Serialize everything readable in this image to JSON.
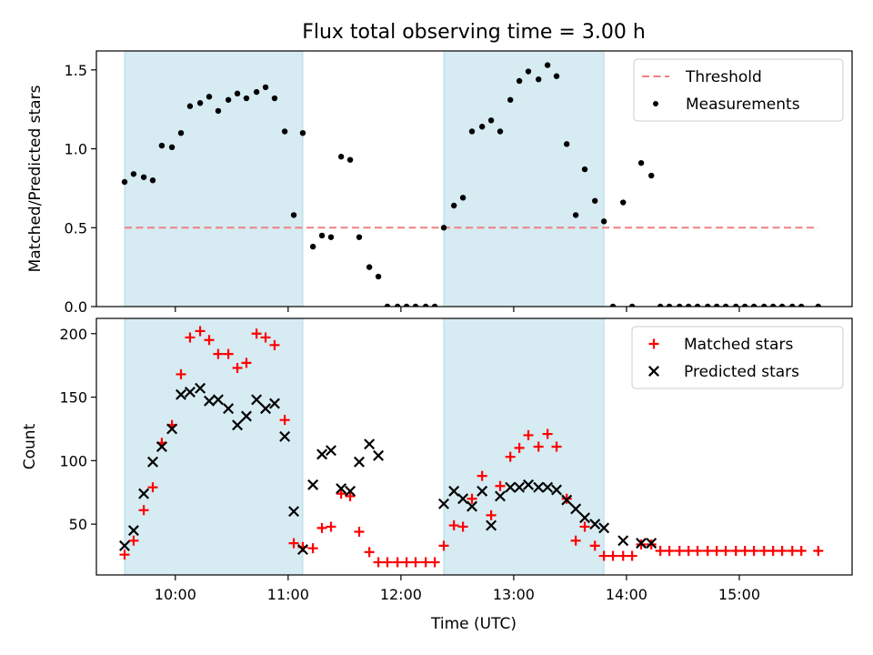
{
  "chart_data": {
    "title": "Flux total observing time = 3.00 h",
    "xlabel": "Time (UTC)",
    "x_unit": "hours (UTC)",
    "xlim": [
      9.3,
      16.0
    ],
    "xticks": [
      {
        "value": 10,
        "label": "10:00"
      },
      {
        "value": 11,
        "label": "11:00"
      },
      {
        "value": 12,
        "label": "12:00"
      },
      {
        "value": 13,
        "label": "13:00"
      },
      {
        "value": 14,
        "label": "14:00"
      },
      {
        "value": 15,
        "label": "15:00"
      }
    ],
    "shaded_intervals": [
      [
        9.55,
        11.13
      ],
      [
        12.38,
        13.8
      ]
    ],
    "shade_color": "#add8e6",
    "panels": [
      {
        "type": "scatter",
        "ylabel": "Matched/Predicted stars",
        "ylim": [
          0,
          1.62
        ],
        "yticks": [
          0.0,
          0.5,
          1.0,
          1.5
        ],
        "ytick_labels": [
          "0.0",
          "0.5",
          "1.0",
          "1.5"
        ],
        "threshold": {
          "name": "Threshold",
          "value": 0.5,
          "x_range": [
            9.55,
            15.7
          ],
          "color": "#f08080"
        },
        "series": [
          {
            "name": "Measurements",
            "marker": "dot",
            "color": "#000000",
            "points": [
              [
                9.55,
                0.79
              ],
              [
                9.63,
                0.84
              ],
              [
                9.72,
                0.82
              ],
              [
                9.8,
                0.8
              ],
              [
                9.88,
                1.02
              ],
              [
                9.97,
                1.01
              ],
              [
                10.05,
                1.1
              ],
              [
                10.13,
                1.27
              ],
              [
                10.22,
                1.29
              ],
              [
                10.3,
                1.33
              ],
              [
                10.38,
                1.24
              ],
              [
                10.47,
                1.31
              ],
              [
                10.55,
                1.35
              ],
              [
                10.63,
                1.32
              ],
              [
                10.72,
                1.36
              ],
              [
                10.8,
                1.39
              ],
              [
                10.88,
                1.32
              ],
              [
                10.97,
                1.11
              ],
              [
                11.05,
                0.58
              ],
              [
                11.13,
                1.1
              ],
              [
                11.22,
                0.38
              ],
              [
                11.3,
                0.45
              ],
              [
                11.38,
                0.44
              ],
              [
                11.47,
                0.95
              ],
              [
                11.55,
                0.93
              ],
              [
                11.63,
                0.44
              ],
              [
                11.72,
                0.25
              ],
              [
                11.8,
                0.19
              ],
              [
                11.88,
                0.0
              ],
              [
                11.97,
                0.0
              ],
              [
                12.05,
                0.0
              ],
              [
                12.13,
                0.0
              ],
              [
                12.22,
                0.0
              ],
              [
                12.3,
                0.0
              ],
              [
                12.38,
                0.5
              ],
              [
                12.47,
                0.64
              ],
              [
                12.55,
                0.69
              ],
              [
                12.63,
                1.11
              ],
              [
                12.72,
                1.14
              ],
              [
                12.8,
                1.18
              ],
              [
                12.88,
                1.11
              ],
              [
                12.97,
                1.31
              ],
              [
                13.05,
                1.43
              ],
              [
                13.13,
                1.49
              ],
              [
                13.22,
                1.44
              ],
              [
                13.3,
                1.53
              ],
              [
                13.38,
                1.46
              ],
              [
                13.47,
                1.03
              ],
              [
                13.55,
                0.58
              ],
              [
                13.63,
                0.87
              ],
              [
                13.72,
                0.67
              ],
              [
                13.8,
                0.54
              ],
              [
                13.88,
                0.0
              ],
              [
                13.97,
                0.66
              ],
              [
                14.05,
                0.0
              ],
              [
                14.13,
                0.91
              ],
              [
                14.22,
                0.83
              ],
              [
                14.3,
                0.0
              ],
              [
                14.38,
                0.0
              ],
              [
                14.47,
                0.0
              ],
              [
                14.55,
                0.0
              ],
              [
                14.63,
                0.0
              ],
              [
                14.72,
                0.0
              ],
              [
                14.8,
                0.0
              ],
              [
                14.88,
                0.0
              ],
              [
                14.97,
                0.0
              ],
              [
                15.05,
                0.0
              ],
              [
                15.13,
                0.0
              ],
              [
                15.22,
                0.0
              ],
              [
                15.3,
                0.0
              ],
              [
                15.38,
                0.0
              ],
              [
                15.47,
                0.0
              ],
              [
                15.55,
                0.0
              ],
              [
                15.7,
                0.0
              ]
            ]
          }
        ],
        "legend": {
          "position": "top-right",
          "entries": [
            "Threshold",
            "Measurements"
          ]
        }
      },
      {
        "type": "scatter",
        "ylabel": "Count",
        "ylim": [
          10,
          212
        ],
        "yticks": [
          50,
          100,
          150,
          200
        ],
        "ytick_labels": [
          "50",
          "100",
          "150",
          "200"
        ],
        "series": [
          {
            "name": "Matched stars",
            "marker": "plus",
            "color": "#ff0000",
            "points": [
              [
                9.55,
                26
              ],
              [
                9.63,
                37
              ],
              [
                9.72,
                61
              ],
              [
                9.8,
                79
              ],
              [
                9.88,
                114
              ],
              [
                9.97,
                128
              ],
              [
                10.05,
                168
              ],
              [
                10.13,
                197
              ],
              [
                10.22,
                202
              ],
              [
                10.3,
                195
              ],
              [
                10.38,
                184
              ],
              [
                10.47,
                184
              ],
              [
                10.55,
                173
              ],
              [
                10.63,
                177
              ],
              [
                10.72,
                200
              ],
              [
                10.8,
                197
              ],
              [
                10.88,
                191
              ],
              [
                10.97,
                132
              ],
              [
                11.05,
                35
              ],
              [
                11.13,
                32
              ],
              [
                11.22,
                31
              ],
              [
                11.3,
                47
              ],
              [
                11.38,
                48
              ],
              [
                11.47,
                74
              ],
              [
                11.55,
                72
              ],
              [
                11.63,
                44
              ],
              [
                11.72,
                28
              ],
              [
                11.8,
                20
              ],
              [
                11.88,
                20
              ],
              [
                11.97,
                20
              ],
              [
                12.05,
                20
              ],
              [
                12.13,
                20
              ],
              [
                12.22,
                20
              ],
              [
                12.3,
                20
              ],
              [
                12.38,
                33
              ],
              [
                12.47,
                49
              ],
              [
                12.55,
                48
              ],
              [
                12.63,
                70
              ],
              [
                12.72,
                88
              ],
              [
                12.8,
                57
              ],
              [
                12.88,
                80
              ],
              [
                12.97,
                103
              ],
              [
                13.05,
                110
              ],
              [
                13.13,
                120
              ],
              [
                13.22,
                111
              ],
              [
                13.3,
                121
              ],
              [
                13.38,
                111
              ],
              [
                13.47,
                70
              ],
              [
                13.55,
                37
              ],
              [
                13.63,
                48
              ],
              [
                13.72,
                33
              ],
              [
                13.8,
                25
              ],
              [
                13.88,
                25
              ],
              [
                13.97,
                25
              ],
              [
                14.05,
                25
              ],
              [
                14.13,
                34
              ],
              [
                14.22,
                34
              ],
              [
                14.3,
                29
              ],
              [
                14.38,
                29
              ],
              [
                14.47,
                29
              ],
              [
                14.55,
                29
              ],
              [
                14.63,
                29
              ],
              [
                14.72,
                29
              ],
              [
                14.8,
                29
              ],
              [
                14.88,
                29
              ],
              [
                14.97,
                29
              ],
              [
                15.05,
                29
              ],
              [
                15.13,
                29
              ],
              [
                15.22,
                29
              ],
              [
                15.3,
                29
              ],
              [
                15.38,
                29
              ],
              [
                15.47,
                29
              ],
              [
                15.55,
                29
              ],
              [
                15.7,
                29
              ]
            ]
          },
          {
            "name": "Predicted stars",
            "marker": "x",
            "color": "#000000",
            "points": [
              [
                9.55,
                33
              ],
              [
                9.63,
                45
              ],
              [
                9.72,
                74
              ],
              [
                9.8,
                99
              ],
              [
                9.88,
                111
              ],
              [
                9.97,
                125
              ],
              [
                10.05,
                152
              ],
              [
                10.13,
                154
              ],
              [
                10.22,
                157
              ],
              [
                10.3,
                147
              ],
              [
                10.38,
                148
              ],
              [
                10.47,
                141
              ],
              [
                10.55,
                128
              ],
              [
                10.63,
                135
              ],
              [
                10.72,
                148
              ],
              [
                10.8,
                141
              ],
              [
                10.88,
                145
              ],
              [
                10.97,
                119
              ],
              [
                11.05,
                60
              ],
              [
                11.13,
                30
              ],
              [
                11.22,
                81
              ],
              [
                11.3,
                105
              ],
              [
                11.38,
                108
              ],
              [
                11.47,
                78
              ],
              [
                11.55,
                76
              ],
              [
                11.63,
                99
              ],
              [
                11.72,
                113
              ],
              [
                11.8,
                104
              ],
              [
                12.38,
                66
              ],
              [
                12.47,
                76
              ],
              [
                12.55,
                70
              ],
              [
                12.63,
                64
              ],
              [
                12.72,
                76
              ],
              [
                12.8,
                49
              ],
              [
                12.88,
                72
              ],
              [
                12.97,
                79
              ],
              [
                13.05,
                79
              ],
              [
                13.13,
                81
              ],
              [
                13.22,
                79
              ],
              [
                13.3,
                79
              ],
              [
                13.38,
                77
              ],
              [
                13.47,
                69
              ],
              [
                13.55,
                62
              ],
              [
                13.63,
                55
              ],
              [
                13.72,
                50
              ],
              [
                13.8,
                47
              ],
              [
                13.97,
                37
              ],
              [
                14.13,
                35
              ],
              [
                14.22,
                35
              ]
            ]
          }
        ],
        "legend": {
          "position": "top-right",
          "entries": [
            "Matched stars",
            "Predicted stars"
          ]
        }
      }
    ]
  }
}
